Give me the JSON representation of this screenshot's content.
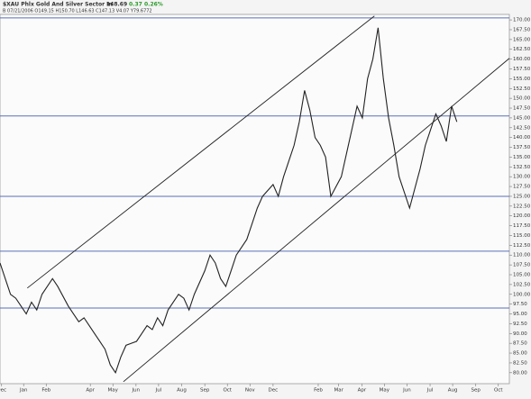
{
  "chart_data": {
    "type": "line",
    "title": "$XAU Phlx Gold And Silver Sector In",
    "last": "148.69",
    "change": "0.37",
    "change_pct": "0.26%",
    "subtitle": "B 07/21/2006 O149.15 H150.70 L146.63 C147.13 V4.07 Y79.6772",
    "x": [
      0,
      1,
      2,
      3,
      4,
      5,
      6,
      7,
      8,
      9,
      10,
      11,
      13,
      14,
      15,
      16,
      17,
      18,
      19,
      20,
      21,
      22,
      23,
      24,
      26,
      27,
      28,
      29,
      30,
      31,
      32,
      33,
      34,
      35,
      36,
      37,
      39,
      40,
      41,
      42,
      43,
      44,
      45,
      46,
      47,
      48,
      49,
      50,
      52,
      53,
      54,
      55,
      56,
      57,
      58,
      59,
      60,
      61,
      62,
      63,
      65,
      66,
      67,
      68,
      69,
      70,
      71,
      72,
      73,
      74,
      75,
      76,
      78,
      79,
      80,
      81,
      82,
      83,
      84,
      85,
      86,
      87
    ],
    "series": [
      {
        "color": "#222222",
        "values": [
          108,
          104,
          100,
          99,
          97,
          95,
          98,
          96,
          100,
          102,
          104,
          102,
          97,
          95,
          93,
          94,
          92,
          90,
          88,
          86,
          82,
          80,
          84,
          87,
          88,
          90,
          92,
          91,
          94,
          92,
          96,
          98,
          100,
          99,
          96,
          100,
          106,
          110,
          108,
          104,
          102,
          106,
          110,
          112,
          114,
          118,
          122,
          125,
          128,
          125,
          130,
          134,
          138,
          144,
          152,
          147,
          140,
          138,
          135,
          125,
          130,
          136,
          142,
          148,
          145,
          155,
          160,
          168,
          155,
          145,
          138,
          130,
          122,
          127,
          132,
          138,
          142,
          146,
          143,
          139,
          148,
          144
        ]
      }
    ],
    "xlim": [
      0,
      97
    ],
    "xticks": [
      {
        "value": 0.3,
        "label": "Dec"
      },
      {
        "value": 4.5,
        "label": "Jan"
      },
      {
        "value": 8.8,
        "label": "Feb"
      },
      {
        "value": 17.2,
        "label": "Apr"
      },
      {
        "value": 21.5,
        "label": "May"
      },
      {
        "value": 25.9,
        "label": "Jun"
      },
      {
        "value": 30.2,
        "label": "Jul"
      },
      {
        "value": 34.6,
        "label": "Aug"
      },
      {
        "value": 39,
        "label": "Sep"
      },
      {
        "value": 43.3,
        "label": "Oct"
      },
      {
        "value": 47.6,
        "label": "Nov"
      },
      {
        "value": 52,
        "label": "Dec"
      },
      {
        "value": 60.6,
        "label": "Feb"
      },
      {
        "value": 64.5,
        "label": "Mar"
      },
      {
        "value": 68.9,
        "label": "Apr"
      },
      {
        "value": 73.2,
        "label": "May"
      },
      {
        "value": 77.5,
        "label": "Jun"
      },
      {
        "value": 81.9,
        "label": "Jul"
      },
      {
        "value": 86.2,
        "label": "Aug"
      },
      {
        "value": 90.6,
        "label": "Sep"
      },
      {
        "value": 94.9,
        "label": "Oct"
      }
    ],
    "ylim": [
      77.2,
      171.4
    ],
    "yticks": [
      {
        "value": 80,
        "label": "80.00"
      },
      {
        "value": 82.5,
        "label": "82.50"
      },
      {
        "value": 85,
        "label": "85.00"
      },
      {
        "value": 87.5,
        "label": "87.50"
      },
      {
        "value": 90,
        "label": "90.00"
      },
      {
        "value": 92.5,
        "label": "92.50"
      },
      {
        "value": 95,
        "label": "95.00"
      },
      {
        "value": 97.5,
        "label": "97.50"
      },
      {
        "value": 100,
        "label": "100.00"
      },
      {
        "value": 102.5,
        "label": "102.50"
      },
      {
        "value": 105,
        "label": "105.00"
      },
      {
        "value": 107.5,
        "label": "107.50"
      },
      {
        "value": 110,
        "label": "110.00"
      },
      {
        "value": 112.5,
        "label": "112.50"
      },
      {
        "value": 115,
        "label": "115.00"
      },
      {
        "value": 117.5,
        "label": "117.50"
      },
      {
        "value": 120,
        "label": "120.00"
      },
      {
        "value": 122.5,
        "label": "122.50"
      },
      {
        "value": 125,
        "label": "125.00"
      },
      {
        "value": 127.5,
        "label": "127.50"
      },
      {
        "value": 130,
        "label": "130.00"
      },
      {
        "value": 132.5,
        "label": "132.50"
      },
      {
        "value": 135,
        "label": "135.00"
      },
      {
        "value": 137.5,
        "label": "137.50"
      },
      {
        "value": 140,
        "label": "140.00"
      },
      {
        "value": 142.5,
        "label": "142.50"
      },
      {
        "value": 145,
        "label": "145.00"
      },
      {
        "value": 147.5,
        "label": "147.50"
      },
      {
        "value": 150,
        "label": "150.00"
      },
      {
        "value": 152.5,
        "label": "152.50"
      },
      {
        "value": 155,
        "label": "155.00"
      },
      {
        "value": 157.5,
        "label": "157.50"
      },
      {
        "value": 160,
        "label": "160.00"
      },
      {
        "value": 162.5,
        "label": "162.50"
      },
      {
        "value": 165,
        "label": "165.00"
      },
      {
        "value": 167.5,
        "label": "167.50"
      },
      {
        "value": 170,
        "label": "170.00"
      }
    ],
    "hlines": {
      "color": "#5a6fb8",
      "values": [
        170.5,
        145.5,
        125,
        111,
        96.5
      ]
    },
    "trendlines": {
      "color": "#222222",
      "lines": [
        {
          "x": [
            5.2,
            71.3
          ],
          "y": [
            101.6,
            171
          ]
        },
        {
          "x": [
            23.5,
            97
          ],
          "y": [
            77.7,
            160.2
          ]
        }
      ]
    }
  }
}
